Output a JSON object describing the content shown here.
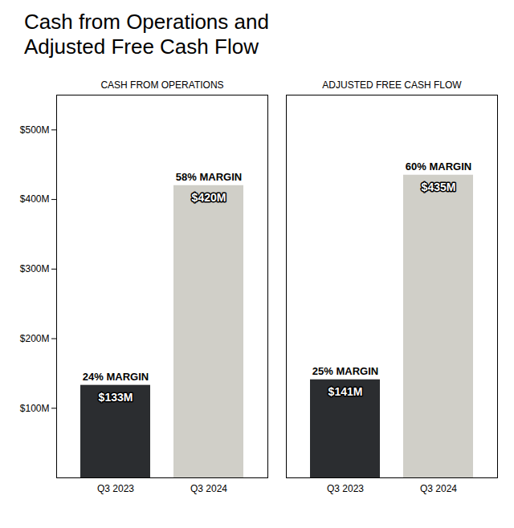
{
  "chart_data": {
    "type": "bar",
    "title": "Cash from Operations and\nAdjusted Free Cash Flow",
    "categories": [
      "Q3 2023",
      "Q3 2024",
      "Q3 2023",
      "Q3 2024"
    ],
    "values": [
      133,
      420,
      141,
      435
    ],
    "value_labels": [
      "$133M",
      "$420M",
      "$141M",
      "$435M"
    ],
    "data_labels": true,
    "margin_labels": [
      "24% MARGIN",
      "58% MARGIN",
      "25% MARGIN",
      "60% MARGIN"
    ],
    "section_labels": [
      "CASH FROM OPERATIONS",
      "ADJUSTED FREE CASH FLOW"
    ],
    "colors": [
      "#2b2d30",
      "#d0cfc8",
      "#2b2d30",
      "#d0cfc8"
    ],
    "ylim": [
      0,
      550
    ],
    "yticks": [
      {
        "value": 100,
        "label": "$100M"
      },
      {
        "value": 200,
        "label": "$200M"
      },
      {
        "value": 300,
        "label": "$300M"
      },
      {
        "value": 400,
        "label": "$400M"
      },
      {
        "value": 500,
        "label": "$500M"
      }
    ],
    "grid": false
  }
}
